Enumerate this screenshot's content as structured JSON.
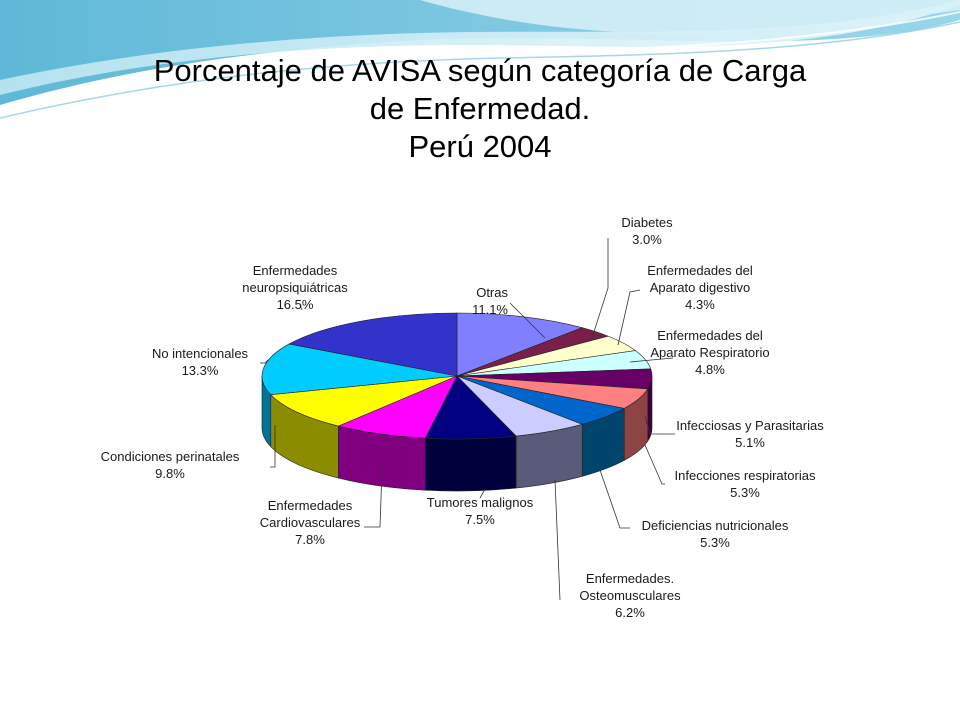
{
  "slide": {
    "title_line1": "Porcentaje de AVISA según categoría de Carga",
    "title_line2": "de Enfermedad.",
    "title_line3": "Perú 2004"
  },
  "chart_data": {
    "type": "pie",
    "title": "",
    "slices": [
      {
        "label": [
          "Otras"
        ],
        "value_label": "11.1%",
        "value": 11.1,
        "color": "#8080ff",
        "side": "#4d4da6"
      },
      {
        "label": [
          "Diabetes"
        ],
        "value_label": "3.0%",
        "value": 3.0,
        "color": "#7a1f4a",
        "side": "#4a1230"
      },
      {
        "label": [
          "Enfermedades del",
          "Aparato digestivo"
        ],
        "value_label": "4.3%",
        "value": 4.3,
        "color": "#ffffcc",
        "side": "#b3b38f"
      },
      {
        "label": [
          "Enfermedades del",
          "Aparato Respiratorio"
        ],
        "value_label": "4.8%",
        "value": 4.8,
        "color": "#ccffff",
        "side": "#8fb3b3"
      },
      {
        "label": [
          "Infecciosas y Parasitarias"
        ],
        "value_label": "5.1%",
        "value": 5.1,
        "color": "#660066",
        "side": "#3d003d"
      },
      {
        "label": [
          "Infecciones respiratorias"
        ],
        "value_label": "5.3%",
        "value": 5.3,
        "color": "#ff8080",
        "side": "#8c4444"
      },
      {
        "label": [
          "Deficiencias nutricionales"
        ],
        "value_label": "5.3%",
        "value": 5.3,
        "color": "#0066cc",
        "side": "#00456b"
      },
      {
        "label": [
          "Enfermedades.",
          "Osteomusculares"
        ],
        "value_label": "6.2%",
        "value": 6.2,
        "color": "#ccccff",
        "side": "#5a5a7a"
      },
      {
        "label": [
          "Tumores malignos"
        ],
        "value_label": "7.5%",
        "value": 7.5,
        "color": "#000080",
        "side": "#00003d"
      },
      {
        "label": [
          "Enfermedades",
          "Cardiovasculares"
        ],
        "value_label": "7.8%",
        "value": 7.8,
        "color": "#ff00ff",
        "side": "#800080"
      },
      {
        "label": [
          "Condiciones perinatales"
        ],
        "value_label": "9.8%",
        "value": 9.8,
        "color": "#ffff00",
        "side": "#8c8c00"
      },
      {
        "label": [
          "No intencionales"
        ],
        "value_label": "13.3%",
        "value": 13.3,
        "color": "#00ccff",
        "side": "#007399"
      },
      {
        "label": [
          "Enfermedades",
          "neuropsiquiátricas"
        ],
        "value_label": "16.5%",
        "value": 16.5,
        "color": "#3333cc",
        "side": "#1a1a73"
      }
    ]
  }
}
